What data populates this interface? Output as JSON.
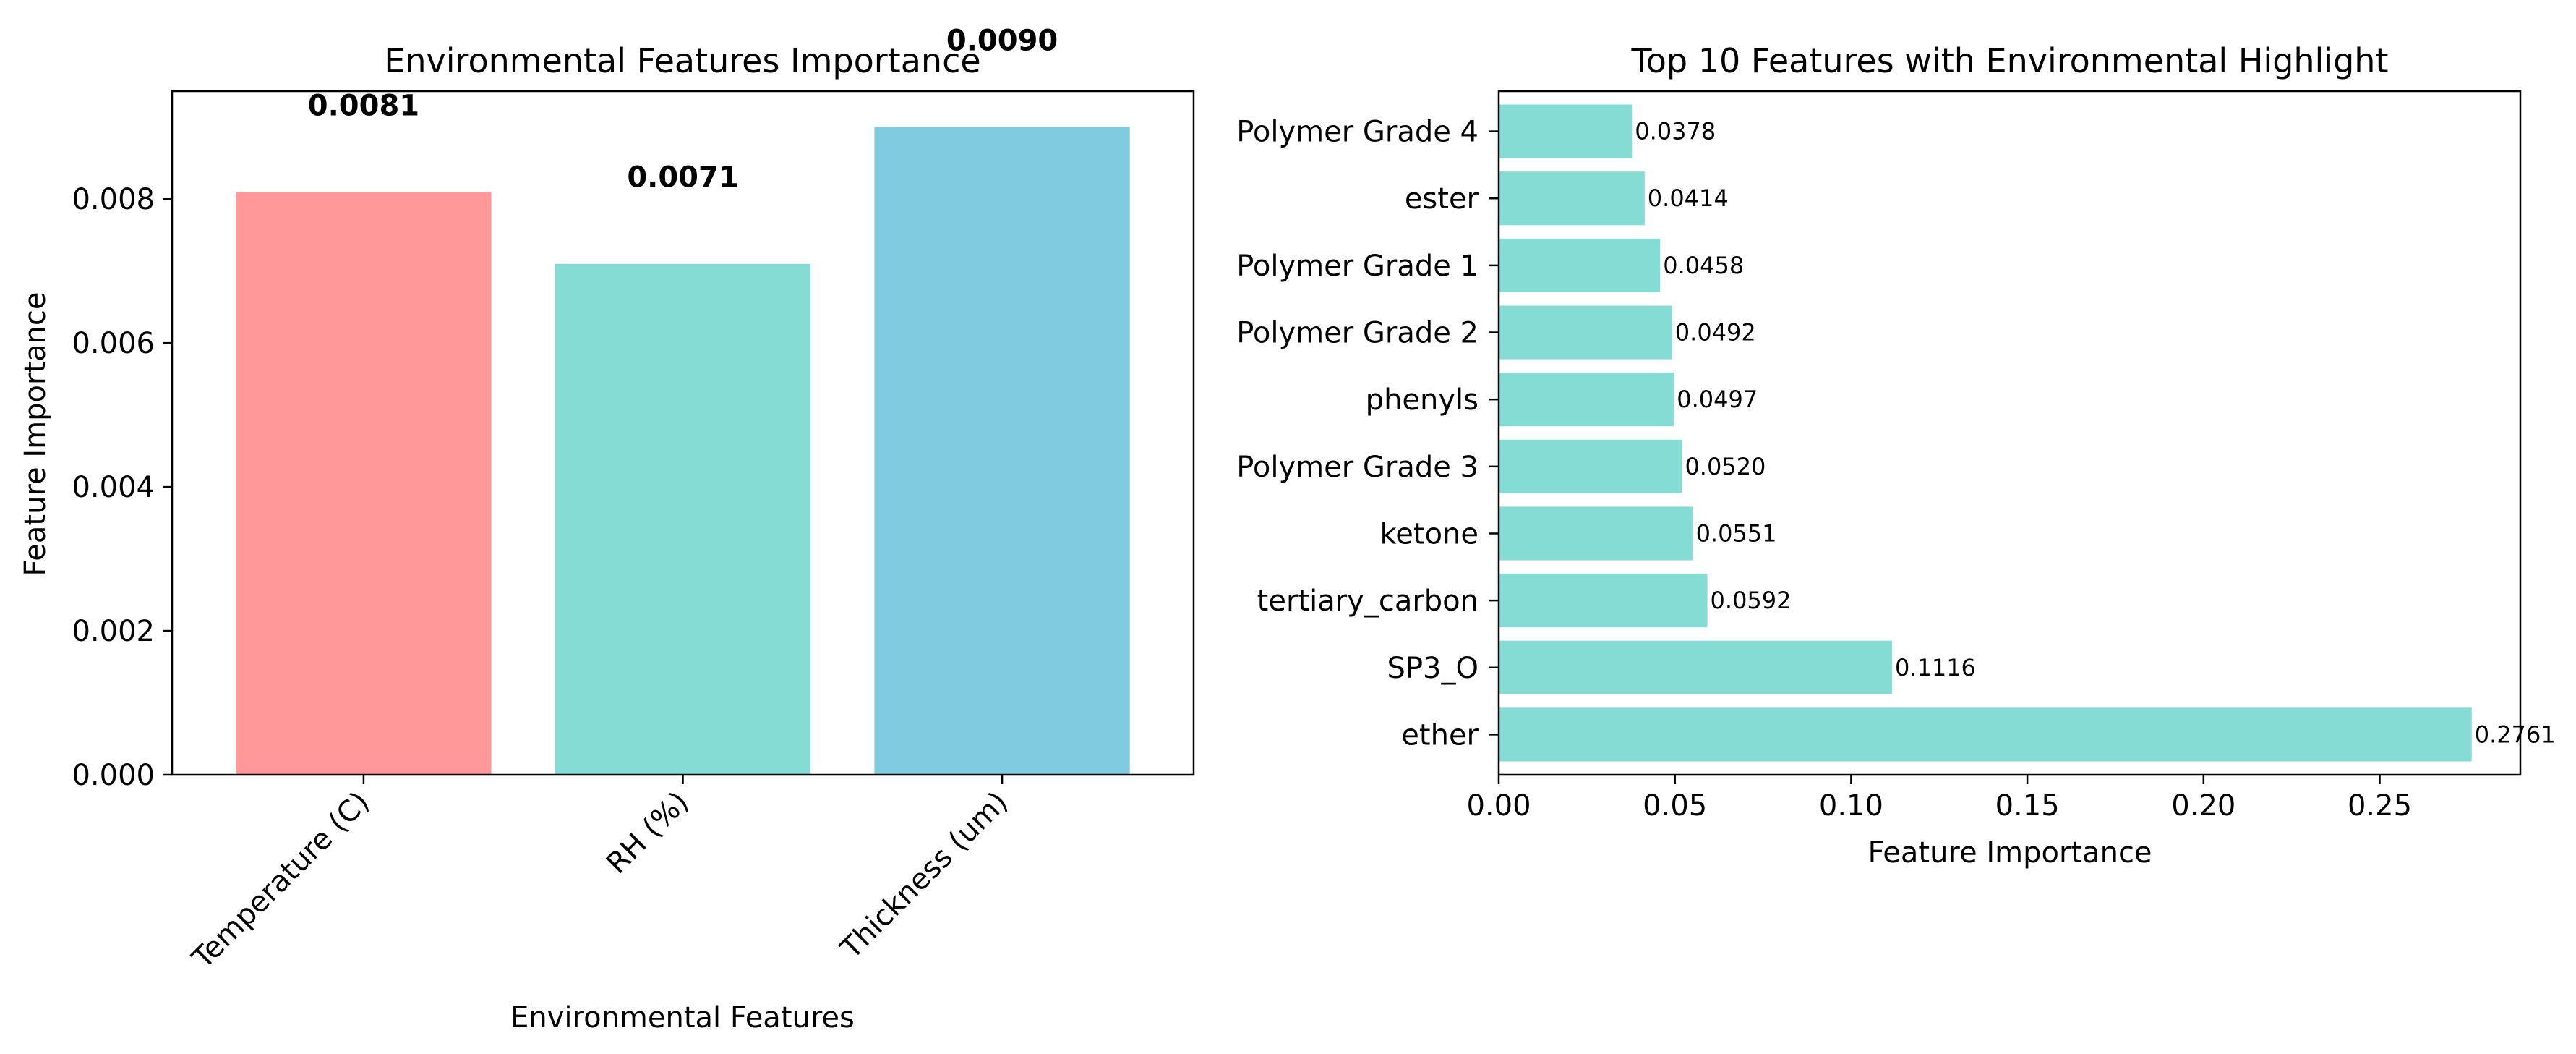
{
  "chart_data": [
    {
      "type": "bar",
      "title": "Environmental Features Importance",
      "xlabel": "Environmental Features",
      "ylabel": "Feature Importance",
      "categories": [
        "Temperature (C)",
        "RH (%)",
        "Thickness (um)"
      ],
      "values": [
        0.0081,
        0.0071,
        0.009
      ],
      "value_labels": [
        "0.0081",
        "0.0071",
        "0.0090"
      ],
      "colors": [
        "#ff9999",
        "#84dcd4",
        "#80cbdf"
      ],
      "ylim": [
        0,
        0.0095
      ],
      "yticks": [
        0,
        0.002,
        0.004,
        0.006,
        0.008
      ],
      "ytick_labels": [
        "0.000",
        "0.002",
        "0.004",
        "0.006",
        "0.008"
      ],
      "grid": false
    },
    {
      "type": "bar",
      "orientation": "horizontal",
      "title": "Top 10 Features with Environmental Highlight",
      "xlabel": "Feature Importance",
      "ylabel": "",
      "categories": [
        "ether",
        "SP3_O",
        "tertiary_carbon",
        "ketone",
        "Polymer Grade 3",
        "phenyls",
        "Polymer Grade 2",
        "Polymer Grade 1",
        "ester",
        "Polymer Grade 4"
      ],
      "values": [
        0.2761,
        0.1116,
        0.0592,
        0.0551,
        0.052,
        0.0497,
        0.0492,
        0.0458,
        0.0414,
        0.0378
      ],
      "value_labels": [
        "0.2761",
        "0.1116",
        "0.0592",
        "0.0551",
        "0.0520",
        "0.0497",
        "0.0492",
        "0.0458",
        "0.0414",
        "0.0378"
      ],
      "color": "#84dcd4",
      "xlim": [
        0,
        0.2899
      ],
      "xticks": [
        0,
        0.05,
        0.1,
        0.15,
        0.2,
        0.25
      ],
      "xtick_labels": [
        "0.00",
        "0.05",
        "0.10",
        "0.15",
        "0.20",
        "0.25"
      ],
      "grid": false
    }
  ]
}
